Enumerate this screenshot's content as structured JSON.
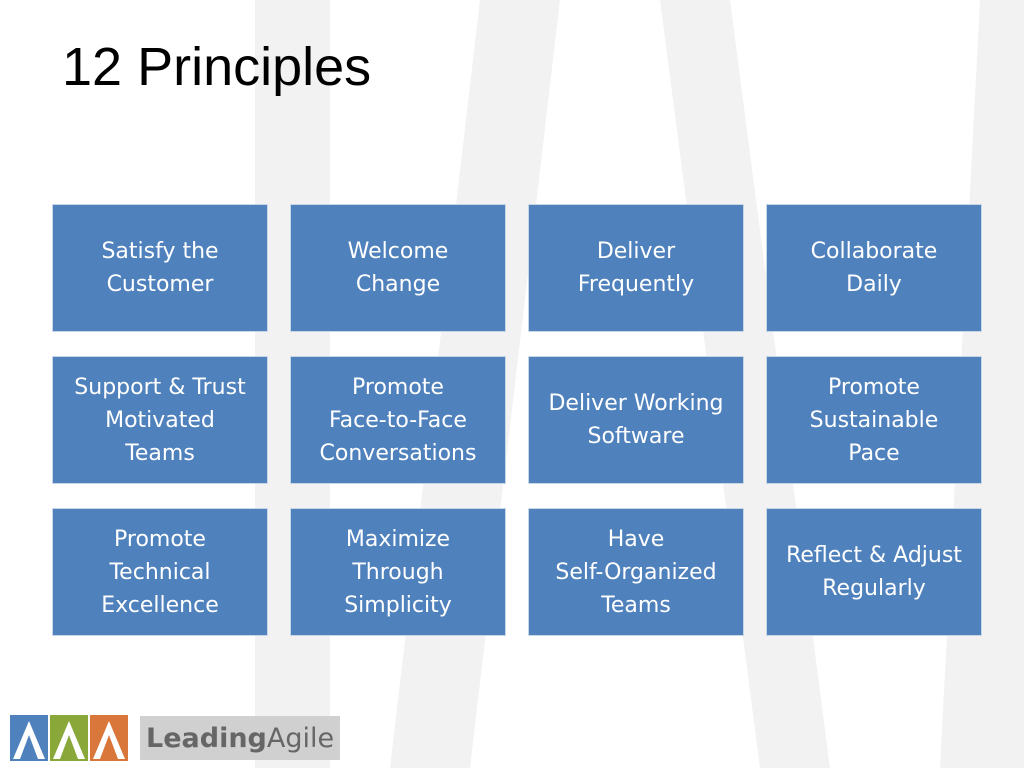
{
  "slide": {
    "title": "12 Principles",
    "tiles": [
      {
        "label": "Satisfy the\nCustomer"
      },
      {
        "label": "Welcome\nChange"
      },
      {
        "label": "Deliver\nFrequently"
      },
      {
        "label": "Collaborate\nDaily"
      },
      {
        "label": "Support & Trust\nMotivated\nTeams"
      },
      {
        "label": "Promote\nFace-to-Face\nConversations"
      },
      {
        "label": "Deliver Working\nSoftware"
      },
      {
        "label": "Promote\nSustainable\nPace"
      },
      {
        "label": "Promote\nTechnical\nExcellence"
      },
      {
        "label": "Maximize\nThrough\nSimplicity"
      },
      {
        "label": "Have\nSelf-Organized\nTeams"
      },
      {
        "label": "Reflect & Adjust\nRegularly"
      }
    ]
  },
  "logo": {
    "brand_bold": "Leading",
    "brand_light": "Agile",
    "icons": [
      "blue-arrow-icon",
      "green-arrow-icon",
      "orange-arrow-icon"
    ],
    "colors": {
      "blue": "#4f81bd",
      "green": "#8aa83a",
      "orange": "#d9763a"
    }
  },
  "colors": {
    "tile": "#4f81bd",
    "tile_text": "#ffffff",
    "title": "#000000"
  }
}
